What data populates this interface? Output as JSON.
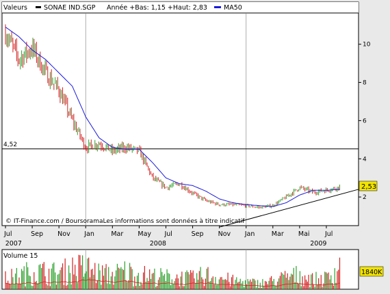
{
  "legend": {
    "label": "Valeurs",
    "ticker": "SONAE IND.SGP",
    "range_text": "Année +Bas: 1,15 +Haut: 2,83",
    "ma_label": "MA50"
  },
  "colors": {
    "background": "#e9e9e9",
    "panel": "#ffffff",
    "grid": "#9a9a9a",
    "up": "#2ca02c",
    "down": "#d42020",
    "ma": "#1a1adb",
    "price_box": "#f2e400",
    "volume_box": "#f2e400",
    "line": "#000000"
  },
  "footer": {
    "text": "© IT-Finance.com / BoursoramaLes informations sont données à titre indicatif"
  },
  "volume": {
    "title": "Volume 15",
    "last_label": "1840K"
  },
  "chart_data": [
    {
      "type": "candlestick",
      "title": "",
      "xlabel": "",
      "ylabel": "",
      "ylim": [
        0.5,
        11.6
      ],
      "yticks": [
        2,
        4,
        6,
        8,
        10
      ],
      "grid": true,
      "legend_position": "top-left",
      "x_tick_labels": [
        "Jul",
        "Sep",
        "Nov",
        "Jan",
        "Mar",
        "May",
        "Jul",
        "Sep",
        "Nov",
        "Jan",
        "Mar",
        "Mai",
        "Jul"
      ],
      "year_labels": [
        "2007",
        "2008",
        "2009"
      ],
      "reference_line": {
        "value": 4.52,
        "label": "4,52"
      },
      "last_price": {
        "value": 2.53,
        "label": "2,53"
      },
      "trendline": {
        "from": [
          "2008-09",
          1.15
        ],
        "to": [
          "2009-08",
          2.4
        ]
      },
      "series": [
        {
          "name": "SONAE IND.SGP",
          "x": [
            "2007-07",
            "2007-08",
            "2007-09",
            "2007-10",
            "2007-11",
            "2007-12",
            "2008-01",
            "2008-02",
            "2008-03",
            "2008-04",
            "2008-05",
            "2008-06",
            "2008-07",
            "2008-08",
            "2008-09",
            "2008-10",
            "2008-11",
            "2008-12",
            "2009-01",
            "2009-02",
            "2009-03",
            "2009-04",
            "2009-05",
            "2009-06",
            "2009-07",
            "2009-08"
          ],
          "values": [
            10.6,
            9.2,
            9.8,
            8.5,
            7.6,
            6.0,
            4.6,
            4.8,
            4.4,
            4.6,
            4.4,
            3.0,
            2.5,
            2.7,
            2.2,
            1.8,
            1.6,
            1.6,
            1.55,
            1.45,
            1.55,
            2.0,
            2.5,
            2.25,
            2.35,
            2.53
          ]
        },
        {
          "name": "MA50",
          "x": [
            "2007-07",
            "2007-08",
            "2007-09",
            "2007-10",
            "2007-11",
            "2007-12",
            "2008-01",
            "2008-02",
            "2008-03",
            "2008-04",
            "2008-05",
            "2008-06",
            "2008-07",
            "2008-08",
            "2008-09",
            "2008-10",
            "2008-11",
            "2008-12",
            "2009-01",
            "2009-02",
            "2009-03",
            "2009-04",
            "2009-05",
            "2009-06",
            "2009-07",
            "2009-08"
          ],
          "values": [
            10.9,
            10.4,
            9.7,
            9.2,
            8.5,
            7.8,
            6.2,
            5.1,
            4.6,
            4.5,
            4.5,
            3.8,
            3.0,
            2.7,
            2.6,
            2.3,
            1.9,
            1.7,
            1.6,
            1.55,
            1.5,
            1.7,
            2.1,
            2.35,
            2.35,
            2.4
          ]
        }
      ]
    },
    {
      "type": "bar",
      "title": "Volume 15",
      "ylabel": "",
      "series": [
        {
          "name": "Volume",
          "x": [
            "2007-07",
            "2007-08",
            "2007-09",
            "2007-10",
            "2007-11",
            "2007-12",
            "2008-01",
            "2008-02",
            "2008-03",
            "2008-04",
            "2008-05",
            "2008-06",
            "2008-07",
            "2008-08",
            "2008-09",
            "2008-10",
            "2008-11",
            "2008-12",
            "2009-01",
            "2009-02",
            "2009-03",
            "2009-04",
            "2009-05",
            "2009-06",
            "2009-07",
            "2009-08"
          ],
          "values": [
            900,
            1100,
            1500,
            1400,
            1300,
            1700,
            1800,
            1300,
            1200,
            1500,
            1200,
            1100,
            1000,
            1000,
            900,
            1200,
            1000,
            700,
            600,
            500,
            700,
            1000,
            1200,
            800,
            900,
            1840
          ]
        }
      ]
    }
  ]
}
